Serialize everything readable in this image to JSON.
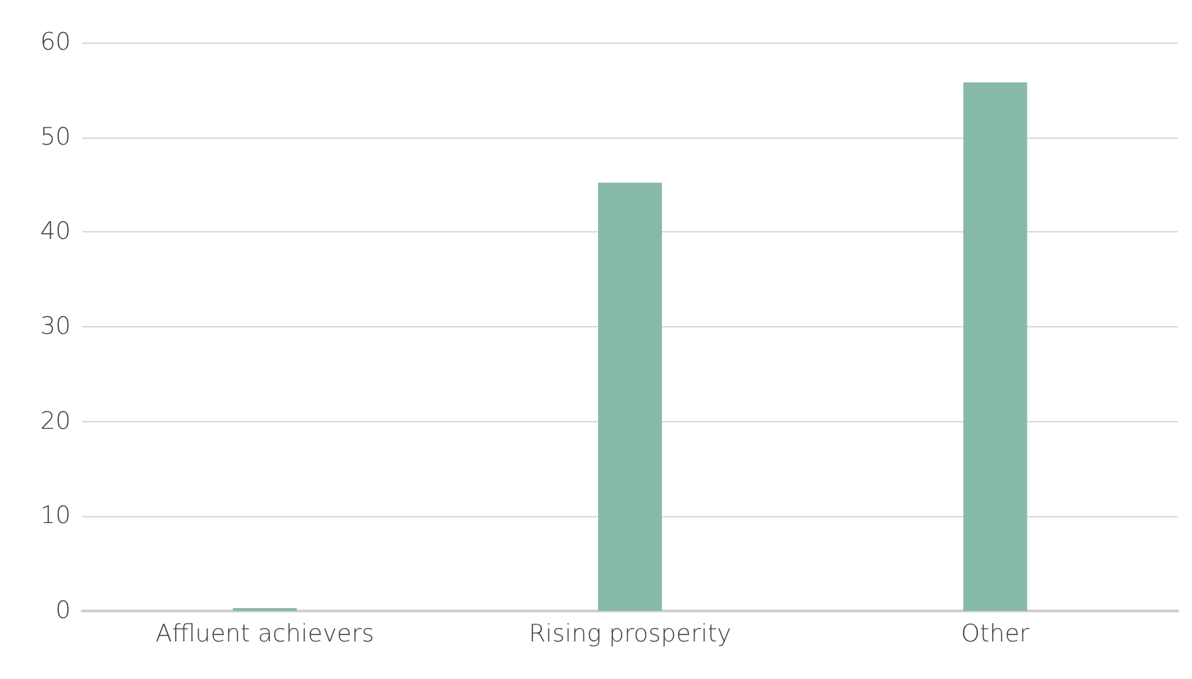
{
  "chart_data": {
    "type": "bar",
    "categories": [
      "Affluent achievers",
      "Rising prosperity",
      "Other"
    ],
    "values": [
      0.3,
      45.2,
      55.8
    ],
    "color": "#87b9aa",
    "ylim": [
      0,
      60
    ],
    "yticks": [
      0,
      10,
      20,
      30,
      40,
      50,
      60
    ],
    "grid": "y"
  }
}
